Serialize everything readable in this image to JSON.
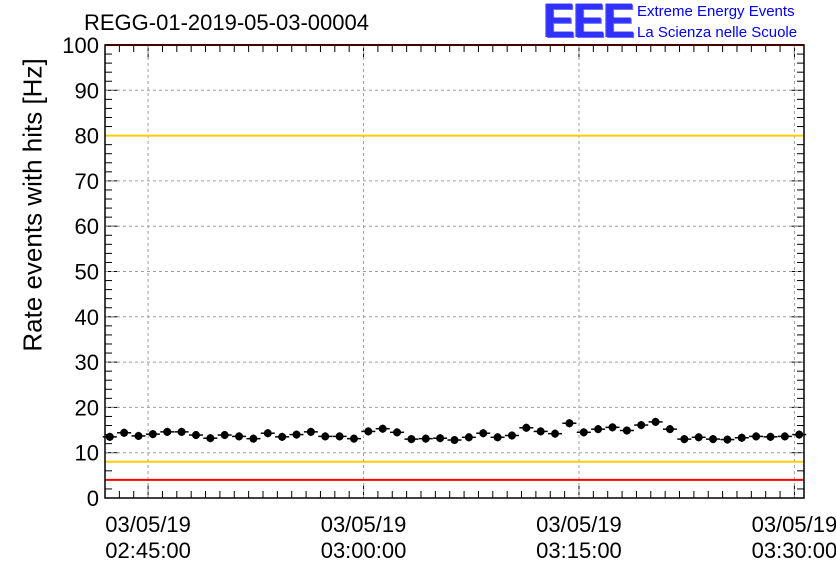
{
  "title": "REGG-01-2019-05-03-00004",
  "logo": {
    "mark": "EEE",
    "line1": "Extreme Energy Events",
    "line2": "La Scienza nelle Scuole"
  },
  "chart_data": {
    "type": "scatter",
    "title": "REGG-01-2019-05-03-00004",
    "xlabel": "",
    "ylabel": "Rate events with hits [Hz]",
    "ylim": [
      0,
      100
    ],
    "xlim": [
      "03/05/19 02:42:00",
      "03/05/19 03:30:40"
    ],
    "grid": true,
    "y_ticks": [
      0,
      10,
      20,
      30,
      40,
      50,
      60,
      70,
      80,
      90,
      100
    ],
    "x_ticks": [
      {
        "time": "02:45:00",
        "label_date": "03/05/19",
        "label_time": "02:45:00"
      },
      {
        "time": "03:00:00",
        "label_date": "03/05/19",
        "label_time": "03:00:00"
      },
      {
        "time": "03:15:00",
        "label_date": "03/05/19",
        "label_time": "03:15:00"
      },
      {
        "time": "03:30:00",
        "label_date": "03/05/19",
        "label_time": "03:30:00"
      }
    ],
    "reference_lines": [
      {
        "y": 100,
        "color": "#ff0000"
      },
      {
        "y": 80,
        "color": "#ffcc00"
      },
      {
        "y": 8,
        "color": "#ffcc00"
      },
      {
        "y": 4,
        "color": "#ff0000"
      }
    ],
    "series": [
      {
        "marker_color": "#000000",
        "x": [
          "02:42:20",
          "02:43:20",
          "02:44:20",
          "02:45:20",
          "02:46:20",
          "02:47:20",
          "02:48:20",
          "02:49:20",
          "02:50:20",
          "02:51:20",
          "02:52:20",
          "02:53:20",
          "02:54:20",
          "02:55:20",
          "02:56:20",
          "02:57:20",
          "02:58:20",
          "02:59:20",
          "03:00:20",
          "03:01:20",
          "03:02:20",
          "03:03:20",
          "03:04:20",
          "03:05:20",
          "03:06:20",
          "03:07:20",
          "03:08:20",
          "03:09:20",
          "03:10:20",
          "03:11:20",
          "03:12:20",
          "03:13:20",
          "03:14:20",
          "03:15:20",
          "03:16:20",
          "03:17:20",
          "03:18:20",
          "03:19:20",
          "03:20:20",
          "03:21:20",
          "03:22:20",
          "03:23:20",
          "03:24:20",
          "03:25:20",
          "03:26:20",
          "03:27:20",
          "03:28:20",
          "03:29:20",
          "03:30:20"
        ],
        "y": [
          13.5,
          14.4,
          13.7,
          14.1,
          14.6,
          14.6,
          13.9,
          13.2,
          13.9,
          13.6,
          13.1,
          14.3,
          13.5,
          14.0,
          14.6,
          13.6,
          13.6,
          13.1,
          14.7,
          15.3,
          14.5,
          13.0,
          13.1,
          13.2,
          12.8,
          13.4,
          14.3,
          13.4,
          13.8,
          15.5,
          14.7,
          14.2,
          16.5,
          14.5,
          15.2,
          15.6,
          14.9,
          16.1,
          16.8,
          15.2,
          13.0,
          13.4,
          13.0,
          12.9,
          13.3,
          13.6,
          13.5,
          13.6,
          14.0
        ],
        "error": 0.9
      }
    ]
  }
}
